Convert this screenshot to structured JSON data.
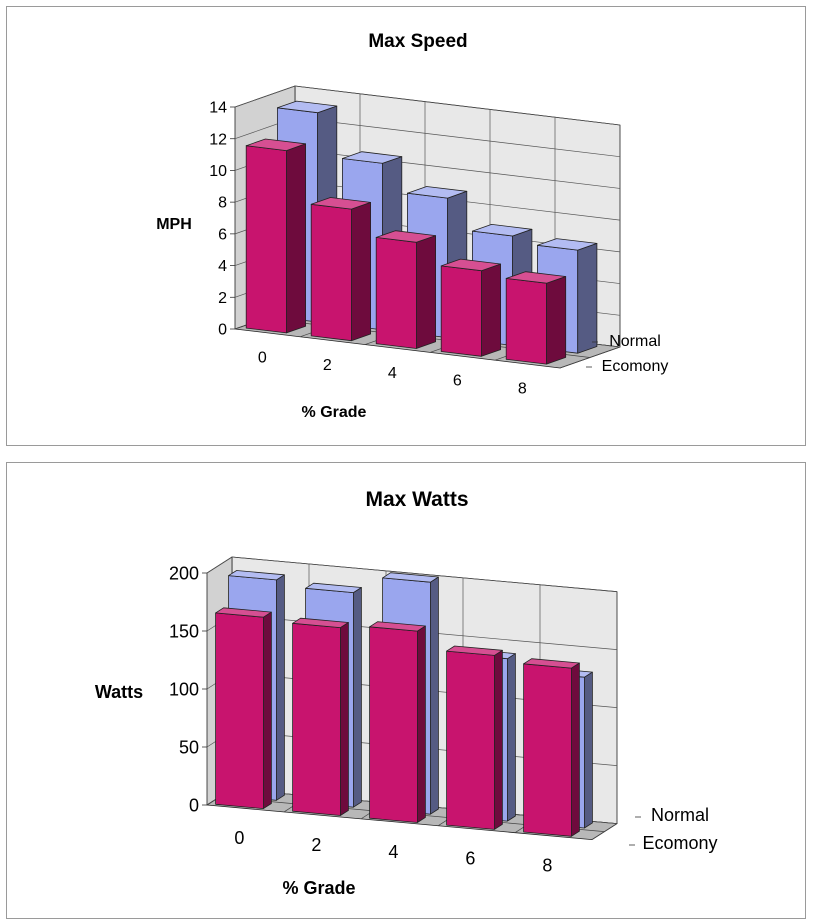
{
  "chart_data": [
    {
      "type": "bar",
      "title": "Max Speed",
      "xlabel": "% Grade",
      "ylabel": "MPH",
      "categories": [
        "0",
        "2",
        "4",
        "6",
        "8"
      ],
      "yticks": [
        "0",
        "2",
        "4",
        "6",
        "8",
        "10",
        "12",
        "14"
      ],
      "ylim": [
        0,
        14
      ],
      "series": [
        {
          "name": "Ecomony",
          "values": [
            11.5,
            8.3,
            6.7,
            5.4,
            5.1
          ],
          "color": "#c8146e"
        },
        {
          "name": "Normal",
          "values": [
            13.2,
            10.5,
            8.8,
            6.9,
            6.5
          ],
          "color": "#9aa6ee"
        }
      ],
      "view": "3d-clustered-column",
      "grid": true
    },
    {
      "type": "bar",
      "title": "Max Watts",
      "xlabel": "% Grade",
      "ylabel": "Watts",
      "categories": [
        "0",
        "2",
        "4",
        "6",
        "8"
      ],
      "yticks": [
        "0",
        "50",
        "100",
        "150",
        "200"
      ],
      "ylim": [
        0,
        200
      ],
      "series": [
        {
          "name": "Ecomony",
          "values": [
            165,
            162,
            165,
            150,
            145
          ],
          "color": "#c8146e"
        },
        {
          "name": "Normal",
          "values": [
            190,
            185,
            200,
            140,
            130
          ],
          "color": "#9aa6ee"
        }
      ],
      "view": "3d-clustered-column",
      "grid": true
    }
  ]
}
